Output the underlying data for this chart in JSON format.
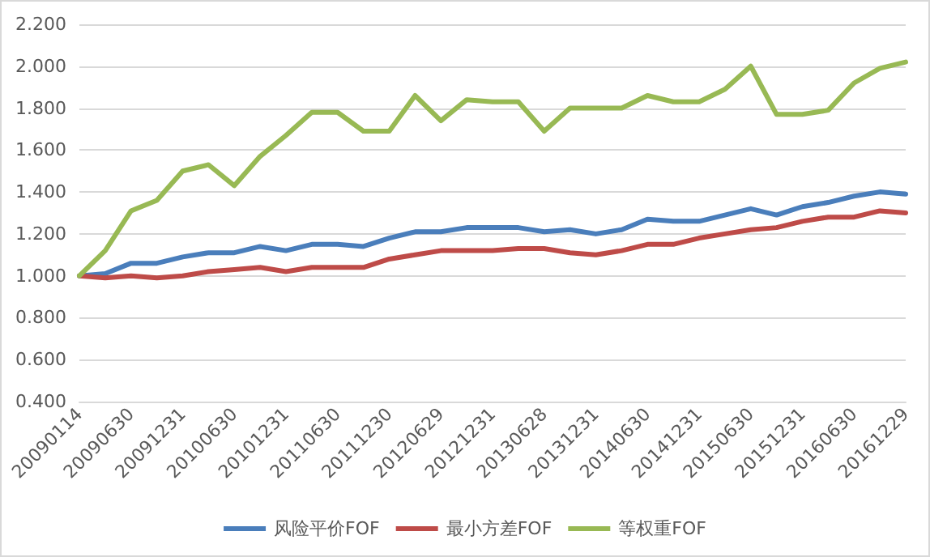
{
  "chart_data": {
    "type": "line",
    "categories": [
      "20090114",
      null,
      "20090630",
      null,
      "20091231",
      null,
      "20100630",
      null,
      "20101231",
      null,
      "20110630",
      null,
      "20111230",
      null,
      "20120629",
      null,
      "20121231",
      null,
      "20130628",
      null,
      "20131231",
      null,
      "20140630",
      null,
      "20141231",
      null,
      "20150630",
      null,
      "20151231",
      null,
      "20160630",
      null,
      "20161229"
    ],
    "series": [
      {
        "name": "风险平价FOF",
        "color": "#4a7ebb",
        "values": [
          1.0,
          1.01,
          1.06,
          1.06,
          1.09,
          1.11,
          1.11,
          1.14,
          1.12,
          1.15,
          1.15,
          1.14,
          1.18,
          1.21,
          1.21,
          1.23,
          1.23,
          1.23,
          1.21,
          1.22,
          1.2,
          1.22,
          1.27,
          1.26,
          1.26,
          1.29,
          1.32,
          1.29,
          1.33,
          1.35,
          1.38,
          1.4,
          1.39
        ]
      },
      {
        "name": "最小方差FOF",
        "color": "#be4b48",
        "values": [
          1.0,
          0.99,
          1.0,
          0.99,
          1.0,
          1.02,
          1.03,
          1.04,
          1.02,
          1.04,
          1.04,
          1.04,
          1.08,
          1.1,
          1.12,
          1.12,
          1.12,
          1.13,
          1.13,
          1.11,
          1.1,
          1.12,
          1.15,
          1.15,
          1.18,
          1.2,
          1.22,
          1.23,
          1.26,
          1.28,
          1.28,
          1.31,
          1.3
        ]
      },
      {
        "name": "等权重FOF",
        "color": "#98b954",
        "values": [
          1.0,
          1.12,
          1.31,
          1.36,
          1.5,
          1.53,
          1.43,
          1.57,
          1.67,
          1.78,
          1.78,
          1.69,
          1.69,
          1.86,
          1.74,
          1.84,
          1.83,
          1.83,
          1.69,
          1.8,
          1.8,
          1.8,
          1.86,
          1.83,
          1.83,
          1.89,
          2.0,
          1.77,
          1.77,
          1.79,
          1.92,
          1.99,
          2.02
        ]
      }
    ],
    "ylim": [
      0.4,
      2.2
    ],
    "yticks": [
      {
        "value": 0.4,
        "label": "0.400"
      },
      {
        "value": 0.6,
        "label": "0.600"
      },
      {
        "value": 0.8,
        "label": "0.800"
      },
      {
        "value": 1.0,
        "label": "1.000"
      },
      {
        "value": 1.2,
        "label": "1.200"
      },
      {
        "value": 1.4,
        "label": "1.400"
      },
      {
        "value": 1.6,
        "label": "1.600"
      },
      {
        "value": 1.8,
        "label": "1.800"
      },
      {
        "value": 2.0,
        "label": "2.000"
      },
      {
        "value": 2.2,
        "label": "2.200"
      }
    ],
    "grid": "y",
    "legend": "bottom",
    "marker": "none",
    "line_style": "solid"
  }
}
